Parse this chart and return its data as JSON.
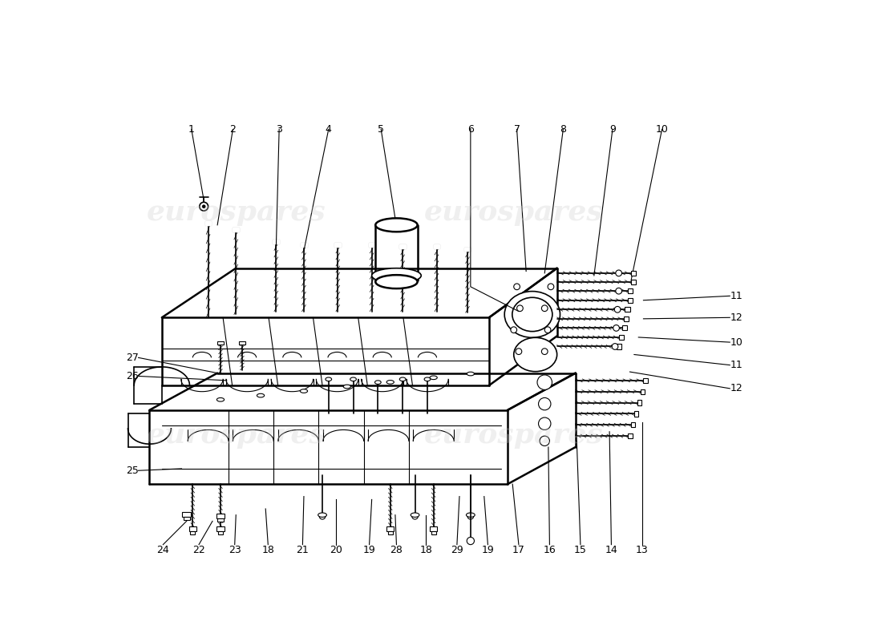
{
  "background_color": "#ffffff",
  "watermark_color": "#cccccc",
  "line_color": "#000000",
  "fig_width": 11.0,
  "fig_height": 8.0,
  "top_labels": [
    "1",
    "2",
    "3",
    "4",
    "5",
    "6",
    "7",
    "8",
    "9",
    "10"
  ],
  "right_labels": [
    "11",
    "12",
    "10",
    "11",
    "12"
  ],
  "left_labels": [
    "27",
    "26",
    "25"
  ],
  "bottom_labels": [
    "24",
    "22",
    "23",
    "18",
    "21",
    "20",
    "19",
    "28",
    "18",
    "29",
    "19",
    "17",
    "16",
    "15",
    "14",
    "13"
  ]
}
